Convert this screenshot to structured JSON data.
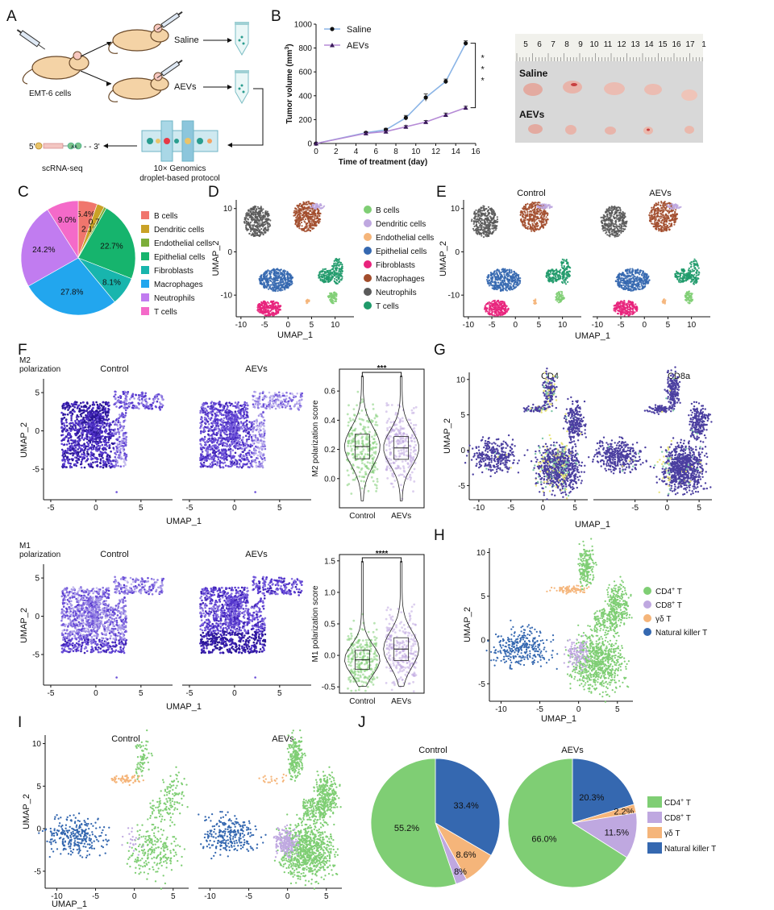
{
  "panels": [
    "A",
    "B",
    "C",
    "D",
    "E",
    "F",
    "G",
    "H",
    "I",
    "J"
  ],
  "panel_a": {
    "arm1": "Saline",
    "arm2": "AEVs",
    "mouse_label": "EMT-6 cells",
    "seq_label": "scRNA-seq",
    "protocol_line1": "10× Genomics",
    "protocol_line2": "droplet-based protocol",
    "seq_5": "5'",
    "seq_3": "- - 3'",
    "bead_text": "A A"
  },
  "panel_b_photo": {
    "ruler_ticks": [
      "5",
      "6",
      "7",
      "8",
      "9",
      "10",
      "11",
      "12",
      "13",
      "14",
      "15",
      "16",
      "17",
      "1"
    ],
    "row1": "Saline",
    "row2": "AEVs",
    "colors": {
      "background": "#d8d8d8",
      "ruler": "#f1f1ec",
      "tumor": "#e9b7ae"
    }
  },
  "chart_data": [
    {
      "panel": "B",
      "type": "line",
      "xlabel": "Time of treatment (day)",
      "ylabel": "Tumor volume (mm",
      "ylabel_sup": "3",
      "ylabel_close": ")",
      "xticks": [
        0,
        2,
        4,
        6,
        8,
        10,
        12,
        14,
        16
      ],
      "yticks": [
        0,
        200,
        400,
        600,
        800,
        1000
      ],
      "xlim": [
        0,
        16
      ],
      "ylim": [
        0,
        1000
      ],
      "significance": "* * *",
      "series": [
        {
          "name": "Saline",
          "color": "#8ab4e6",
          "marker": "circle",
          "x": [
            0,
            5,
            7,
            9,
            11,
            13,
            15
          ],
          "y": [
            0,
            90,
            115,
            215,
            385,
            520,
            840
          ],
          "err": [
            0,
            8,
            12,
            20,
            30,
            20,
            20
          ]
        },
        {
          "name": "AEVs",
          "color": "#b58ad6",
          "marker": "triangle",
          "x": [
            0,
            5,
            7,
            9,
            11,
            13,
            15
          ],
          "y": [
            0,
            85,
            100,
            140,
            180,
            240,
            300
          ],
          "err": [
            0,
            6,
            8,
            10,
            12,
            15,
            12
          ]
        }
      ]
    },
    {
      "panel": "C",
      "type": "pie",
      "labels": [
        "B cells",
        "Dendritic cells",
        "Endothelial cells",
        "Epithelial cells",
        "Fibroblasts",
        "Macrophages",
        "Neutrophils",
        "T cells"
      ],
      "values": [
        5.4,
        2.1,
        0.7,
        22.7,
        8.1,
        27.8,
        24.2,
        9.0
      ],
      "value_labels": [
        "5.4%",
        "2.1%",
        "0.7%",
        "22.7%",
        "8.1%",
        "27.8%",
        "24.2%",
        "9.0%"
      ],
      "colors": [
        "#f0766d",
        "#c9a227",
        "#7cae3a",
        "#16b46d",
        "#18b5ad",
        "#22a6ee",
        "#c17cf0",
        "#f46ac9"
      ]
    },
    {
      "panel": "D",
      "type": "scatter",
      "xlabel": "UMAP_1",
      "ylabel": "UMAP_2",
      "xticks": [
        -10,
        -5,
        0,
        5,
        10
      ],
      "yticks": [
        -10,
        0,
        10
      ],
      "xlim": [
        -11,
        14
      ],
      "ylim": [
        -15,
        12
      ],
      "legend": [
        {
          "label": "B cells",
          "color": "#7fce74"
        },
        {
          "label": "Dendritic cells",
          "color": "#bfa8e0"
        },
        {
          "label": "Endothelial cells",
          "color": "#f5b57a"
        },
        {
          "label": "Epithelial cells",
          "color": "#3568b0"
        },
        {
          "label": "Fibroblasts",
          "color": "#e8237c"
        },
        {
          "label": "Macrophages",
          "color": "#a24d2c"
        },
        {
          "label": "Neutrophils",
          "color": "#5a5a5a"
        },
        {
          "label": "T cells",
          "color": "#1f9a6a"
        }
      ]
    },
    {
      "panel": "E",
      "type": "scatter",
      "titles": [
        "Control",
        "AEVs"
      ],
      "xlabel": "UMAP_1",
      "ylabel": "UMAP_2",
      "xticks": [
        -10,
        -5,
        0,
        5,
        10
      ],
      "yticks": [
        -10,
        0,
        10
      ]
    },
    {
      "panel": "F",
      "type": "scatter",
      "rows": [
        {
          "score_title_line1": "M2",
          "score_title_line2": "polarization",
          "titles": [
            "Control",
            "AEVs"
          ],
          "violin_ylabel": "M2 polarization score",
          "violin_yticks": [
            "0.0",
            "0.2",
            "0.4",
            "0.6"
          ],
          "violin_ylim": [
            -0.2,
            0.75
          ],
          "significance": "***"
        },
        {
          "score_title_line1": "M1",
          "score_title_line2": "polarization",
          "titles": [
            "Control",
            "AEVs"
          ],
          "violin_ylabel": "M1 polarization score",
          "violin_yticks": [
            "-0.5",
            "0.0",
            "0.5",
            "1.0",
            "1.5"
          ],
          "violin_ylim": [
            -0.6,
            1.6
          ],
          "significance": "****"
        }
      ],
      "violin_groups": [
        "Control",
        "AEVs"
      ],
      "violin_colors": [
        "#7fce74",
        "#bfa8e0"
      ],
      "xlabel": "UMAP_1",
      "ylabel": "UMAP_2",
      "xticks": [
        -5,
        0,
        5
      ],
      "yticks": [
        -5,
        0,
        5
      ]
    },
    {
      "panel": "G",
      "type": "scatter",
      "titles": [
        "CD4",
        "CD8a"
      ],
      "xlabel": "UMAP_1",
      "ylabel": "UMAP_2",
      "xticks": [
        -10,
        -5,
        0,
        5
      ],
      "yticks": [
        -5,
        0,
        5,
        10
      ]
    },
    {
      "panel": "H",
      "type": "scatter",
      "xlabel": "UMAP_1",
      "ylabel": "UMAP_2",
      "xticks": [
        -10,
        -5,
        0,
        5
      ],
      "yticks": [
        -5,
        0,
        5,
        10
      ],
      "legend": [
        {
          "label": "CD4",
          "sup": "+",
          "tail": " T",
          "color": "#7fce74"
        },
        {
          "label": "CD8",
          "sup": "+",
          "tail": " T",
          "color": "#bfa8e0"
        },
        {
          "label": "γδ T",
          "sup": "",
          "tail": "",
          "color": "#f5b57a"
        },
        {
          "label": "Natural killer T",
          "sup": "",
          "tail": "",
          "color": "#3568b0"
        }
      ]
    },
    {
      "panel": "I",
      "type": "scatter",
      "titles": [
        "Control",
        "AEVs"
      ],
      "xlabel": "UMAP_1",
      "ylabel": "UMAP_2",
      "xticks": [
        -10,
        -5,
        0,
        5
      ],
      "yticks": [
        -5,
        0,
        5,
        10
      ]
    },
    {
      "panel": "J",
      "type": "pie",
      "labels": [
        "CD4+ T",
        "CD8+ T",
        "γδ T",
        "Natural killer T"
      ],
      "legend": [
        {
          "label": "CD4",
          "sup": "+",
          "tail": " T",
          "color": "#7fce74"
        },
        {
          "label": "CD8",
          "sup": "+",
          "tail": " T",
          "color": "#bfa8e0"
        },
        {
          "label": "γδ T",
          "sup": "",
          "tail": "",
          "color": "#f5b57a"
        },
        {
          "label": "Natural killer T",
          "sup": "",
          "tail": "",
          "color": "#3568b0"
        }
      ],
      "colors": [
        "#7fce74",
        "#bfa8e0",
        "#f5b57a",
        "#3568b0"
      ],
      "pies": [
        {
          "title": "Control",
          "values": [
            55.2,
            2.8,
            8.6,
            33.4
          ],
          "value_labels": [
            "55.2%",
            "2.8%",
            "8.6%",
            "33.4%"
          ]
        },
        {
          "title": "AEVs",
          "values": [
            66.0,
            11.5,
            2.2,
            20.3
          ],
          "value_labels": [
            "66.0%",
            "11.5%",
            "2.2%",
            "20.3%"
          ]
        }
      ]
    }
  ]
}
